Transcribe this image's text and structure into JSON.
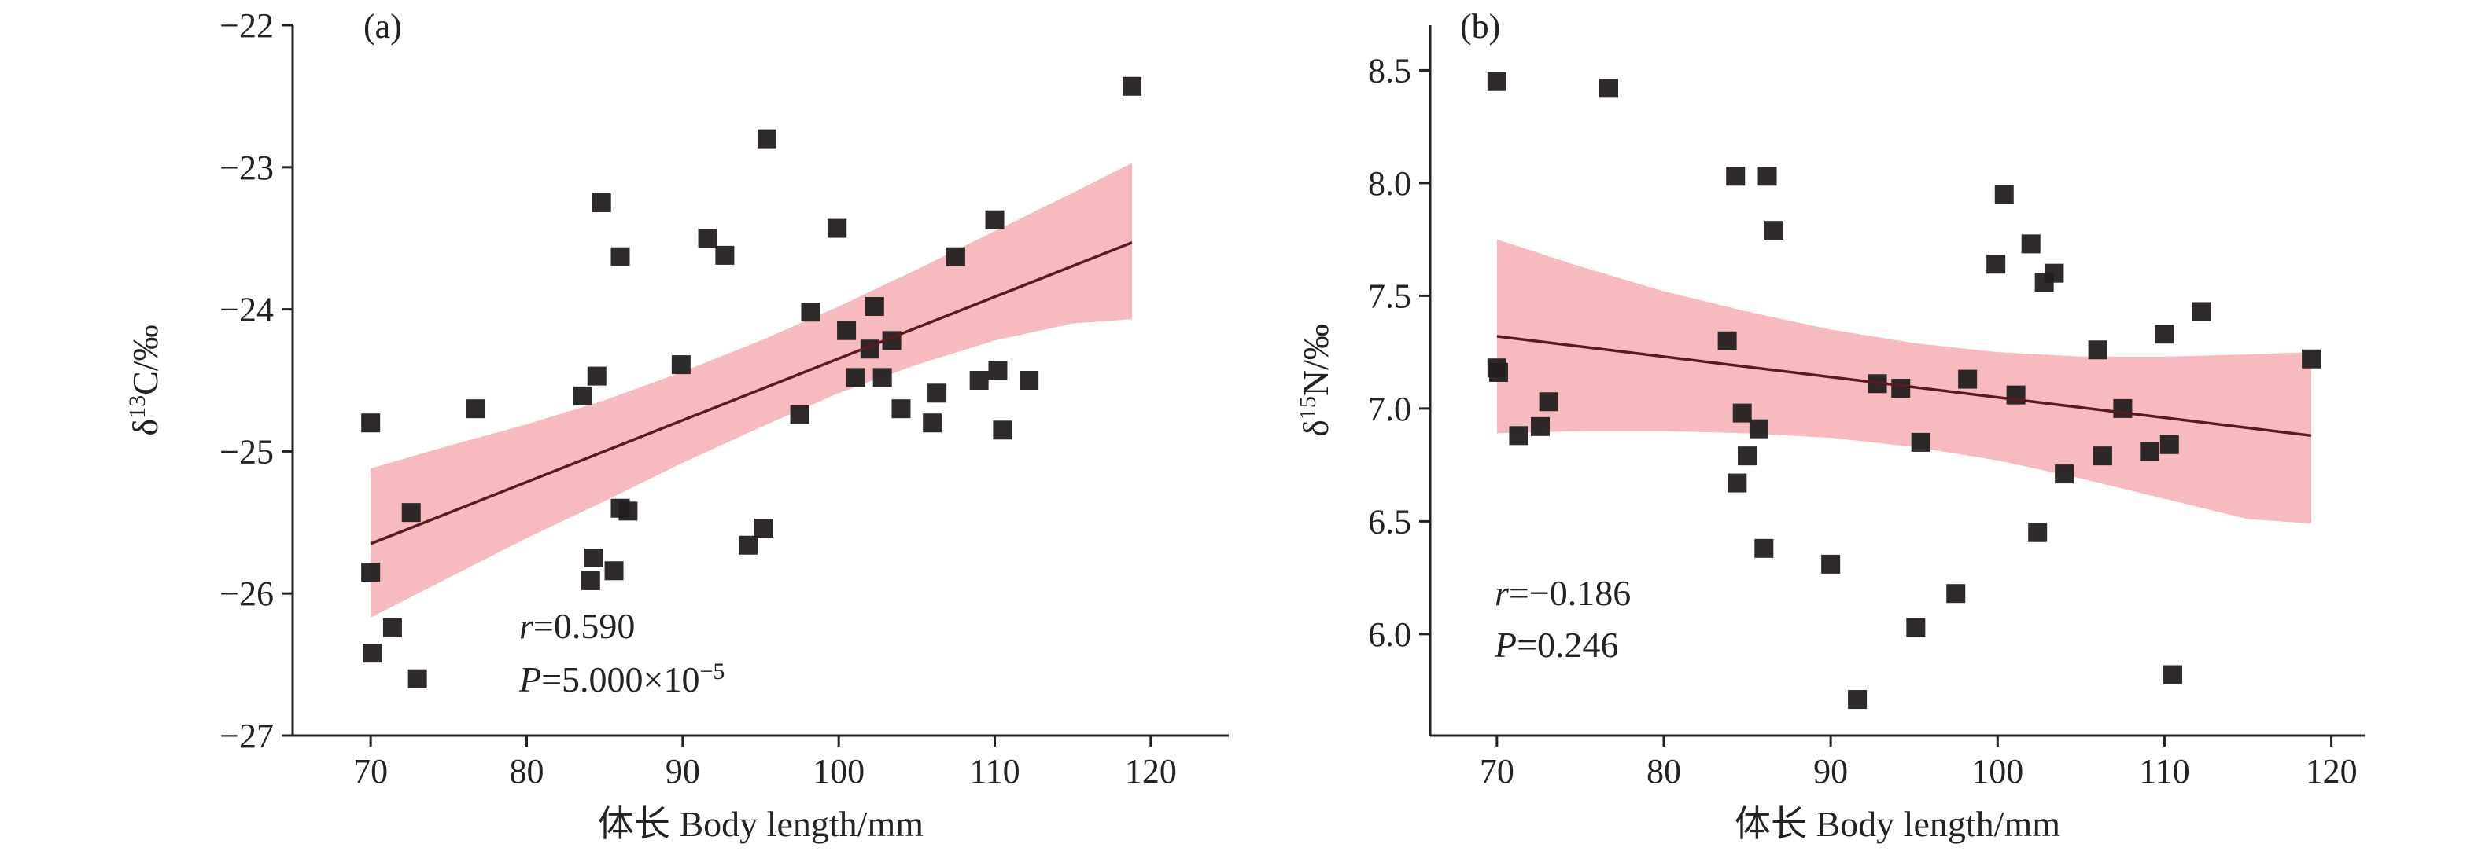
{
  "chart_data": [
    {
      "type": "scatter",
      "panel": "(a)",
      "xlabel": "体长 Body length/mm",
      "ylabel": "δ¹³C/‰",
      "ylabel_base": "δ",
      "ylabel_sup": "13",
      "ylabel_tail": "C/‰",
      "xlim": [
        65,
        125
      ],
      "ylim": [
        -27,
        -22
      ],
      "xticks": [
        70,
        80,
        90,
        100,
        110,
        120
      ],
      "yticks": [
        -27,
        -26,
        -25,
        -24,
        -23,
        -22
      ],
      "xtick_labels": [
        "70",
        "80",
        "90",
        "100",
        "110",
        "120"
      ],
      "ytick_labels": [
        "−27",
        "−26",
        "−25",
        "−24",
        "−23",
        "−22"
      ],
      "stats": {
        "r_symbol": "r",
        "r_value": "=0.590",
        "p_symbol": "P",
        "p_value": "=5.000×10",
        "p_exp": "−5"
      },
      "fit": {
        "x": [
          70,
          118.8
        ],
        "y": [
          -25.65,
          -23.53
        ]
      },
      "band": {
        "x": [
          70,
          75,
          80,
          85,
          90,
          95,
          100,
          105,
          110,
          115,
          118.8
        ],
        "upper": [
          -25.12,
          -24.96,
          -24.81,
          -24.64,
          -24.44,
          -24.22,
          -23.98,
          -23.72,
          -23.45,
          -23.18,
          -22.97
        ],
        "lower": [
          -26.17,
          -25.89,
          -25.61,
          -25.35,
          -25.08,
          -24.83,
          -24.59,
          -24.39,
          -24.22,
          -24.1,
          -24.07
        ]
      },
      "points": [
        {
          "x": 70.0,
          "y": -24.8
        },
        {
          "x": 70.0,
          "y": -25.85
        },
        {
          "x": 70.1,
          "y": -26.42
        },
        {
          "x": 71.4,
          "y": -26.24
        },
        {
          "x": 72.6,
          "y": -25.43
        },
        {
          "x": 73.0,
          "y": -26.6
        },
        {
          "x": 76.7,
          "y": -24.7
        },
        {
          "x": 83.6,
          "y": -24.61
        },
        {
          "x": 84.1,
          "y": -25.91
        },
        {
          "x": 84.3,
          "y": -25.75
        },
        {
          "x": 84.5,
          "y": -24.47
        },
        {
          "x": 84.8,
          "y": -23.25
        },
        {
          "x": 85.6,
          "y": -25.84
        },
        {
          "x": 86.0,
          "y": -25.4
        },
        {
          "x": 86.0,
          "y": -23.63
        },
        {
          "x": 86.5,
          "y": -25.42
        },
        {
          "x": 89.9,
          "y": -24.39
        },
        {
          "x": 91.6,
          "y": -23.5
        },
        {
          "x": 92.7,
          "y": -23.62
        },
        {
          "x": 94.2,
          "y": -25.66
        },
        {
          "x": 95.2,
          "y": -25.54
        },
        {
          "x": 95.4,
          "y": -22.8
        },
        {
          "x": 97.5,
          "y": -24.74
        },
        {
          "x": 98.2,
          "y": -24.02
        },
        {
          "x": 99.9,
          "y": -23.43
        },
        {
          "x": 100.5,
          "y": -24.15
        },
        {
          "x": 101.1,
          "y": -24.48
        },
        {
          "x": 102.0,
          "y": -24.28
        },
        {
          "x": 102.3,
          "y": -23.98
        },
        {
          "x": 102.8,
          "y": -24.48
        },
        {
          "x": 103.4,
          "y": -24.22
        },
        {
          "x": 104.0,
          "y": -24.7
        },
        {
          "x": 106.0,
          "y": -24.8
        },
        {
          "x": 106.3,
          "y": -24.59
        },
        {
          "x": 107.5,
          "y": -23.63
        },
        {
          "x": 109.0,
          "y": -24.5
        },
        {
          "x": 110.0,
          "y": -23.37
        },
        {
          "x": 110.2,
          "y": -24.43
        },
        {
          "x": 110.5,
          "y": -24.85
        },
        {
          "x": 112.2,
          "y": -24.5
        },
        {
          "x": 118.8,
          "y": -22.43
        }
      ]
    },
    {
      "type": "scatter",
      "panel": "(b)",
      "xlabel": "体长 Body length/mm",
      "ylabel": "δ¹⁵N/‰",
      "ylabel_base": "δ",
      "ylabel_sup": "15",
      "ylabel_tail": "N/‰",
      "xlim": [
        66,
        122
      ],
      "ylim": [
        5.55,
        8.7
      ],
      "xticks": [
        70,
        80,
        90,
        100,
        110,
        120
      ],
      "yticks": [
        6.0,
        6.5,
        7.0,
        7.5,
        8.0,
        8.5
      ],
      "xtick_labels": [
        "70",
        "80",
        "90",
        "100",
        "110",
        "120"
      ],
      "ytick_labels": [
        "6.0",
        "6.5",
        "7.0",
        "7.5",
        "8.0",
        "8.5"
      ],
      "stats": {
        "r_symbol": "r",
        "r_value": "=−0.186",
        "p_symbol": "P",
        "p_value": "=0.246"
      },
      "fit": {
        "x": [
          70,
          118.8
        ],
        "y": [
          7.32,
          6.88
        ]
      },
      "band": {
        "x": [
          70,
          75,
          80,
          85,
          90,
          95,
          100,
          105,
          110,
          115,
          118.8
        ],
        "upper": [
          7.75,
          7.63,
          7.52,
          7.43,
          7.35,
          7.29,
          7.25,
          7.23,
          7.23,
          7.24,
          7.25
        ],
        "lower": [
          6.89,
          6.9,
          6.9,
          6.89,
          6.87,
          6.83,
          6.77,
          6.69,
          6.6,
          6.51,
          6.49
        ]
      },
      "points": [
        {
          "x": 70.0,
          "y": 8.45
        },
        {
          "x": 70.0,
          "y": 7.18
        },
        {
          "x": 70.1,
          "y": 7.16
        },
        {
          "x": 71.3,
          "y": 6.88
        },
        {
          "x": 72.6,
          "y": 6.92
        },
        {
          "x": 73.1,
          "y": 7.03
        },
        {
          "x": 76.7,
          "y": 8.42
        },
        {
          "x": 83.8,
          "y": 7.3
        },
        {
          "x": 84.3,
          "y": 8.03
        },
        {
          "x": 84.4,
          "y": 6.67
        },
        {
          "x": 84.7,
          "y": 6.98
        },
        {
          "x": 85.0,
          "y": 6.79
        },
        {
          "x": 85.7,
          "y": 6.91
        },
        {
          "x": 86.0,
          "y": 6.38
        },
        {
          "x": 86.2,
          "y": 8.03
        },
        {
          "x": 86.6,
          "y": 7.79
        },
        {
          "x": 90.0,
          "y": 6.31
        },
        {
          "x": 91.6,
          "y": 5.71
        },
        {
          "x": 92.8,
          "y": 7.11
        },
        {
          "x": 94.2,
          "y": 7.09
        },
        {
          "x": 95.1,
          "y": 6.03
        },
        {
          "x": 95.4,
          "y": 6.85
        },
        {
          "x": 97.5,
          "y": 6.18
        },
        {
          "x": 98.2,
          "y": 7.13
        },
        {
          "x": 99.9,
          "y": 7.64
        },
        {
          "x": 100.4,
          "y": 7.95
        },
        {
          "x": 101.1,
          "y": 7.06
        },
        {
          "x": 102.0,
          "y": 7.73
        },
        {
          "x": 102.4,
          "y": 6.45
        },
        {
          "x": 102.8,
          "y": 7.56
        },
        {
          "x": 103.4,
          "y": 7.6
        },
        {
          "x": 104.0,
          "y": 6.71
        },
        {
          "x": 106.0,
          "y": 7.26
        },
        {
          "x": 106.3,
          "y": 6.79
        },
        {
          "x": 107.5,
          "y": 7.0
        },
        {
          "x": 109.1,
          "y": 6.81
        },
        {
          "x": 110.0,
          "y": 7.33
        },
        {
          "x": 110.3,
          "y": 6.84
        },
        {
          "x": 110.5,
          "y": 5.82
        },
        {
          "x": 112.2,
          "y": 7.43
        },
        {
          "x": 118.8,
          "y": 7.22
        }
      ]
    }
  ],
  "colors": {
    "point": "#231f20",
    "band": "#f5aeb4",
    "fit_line": "#5a1a22",
    "axis": "#222222"
  }
}
